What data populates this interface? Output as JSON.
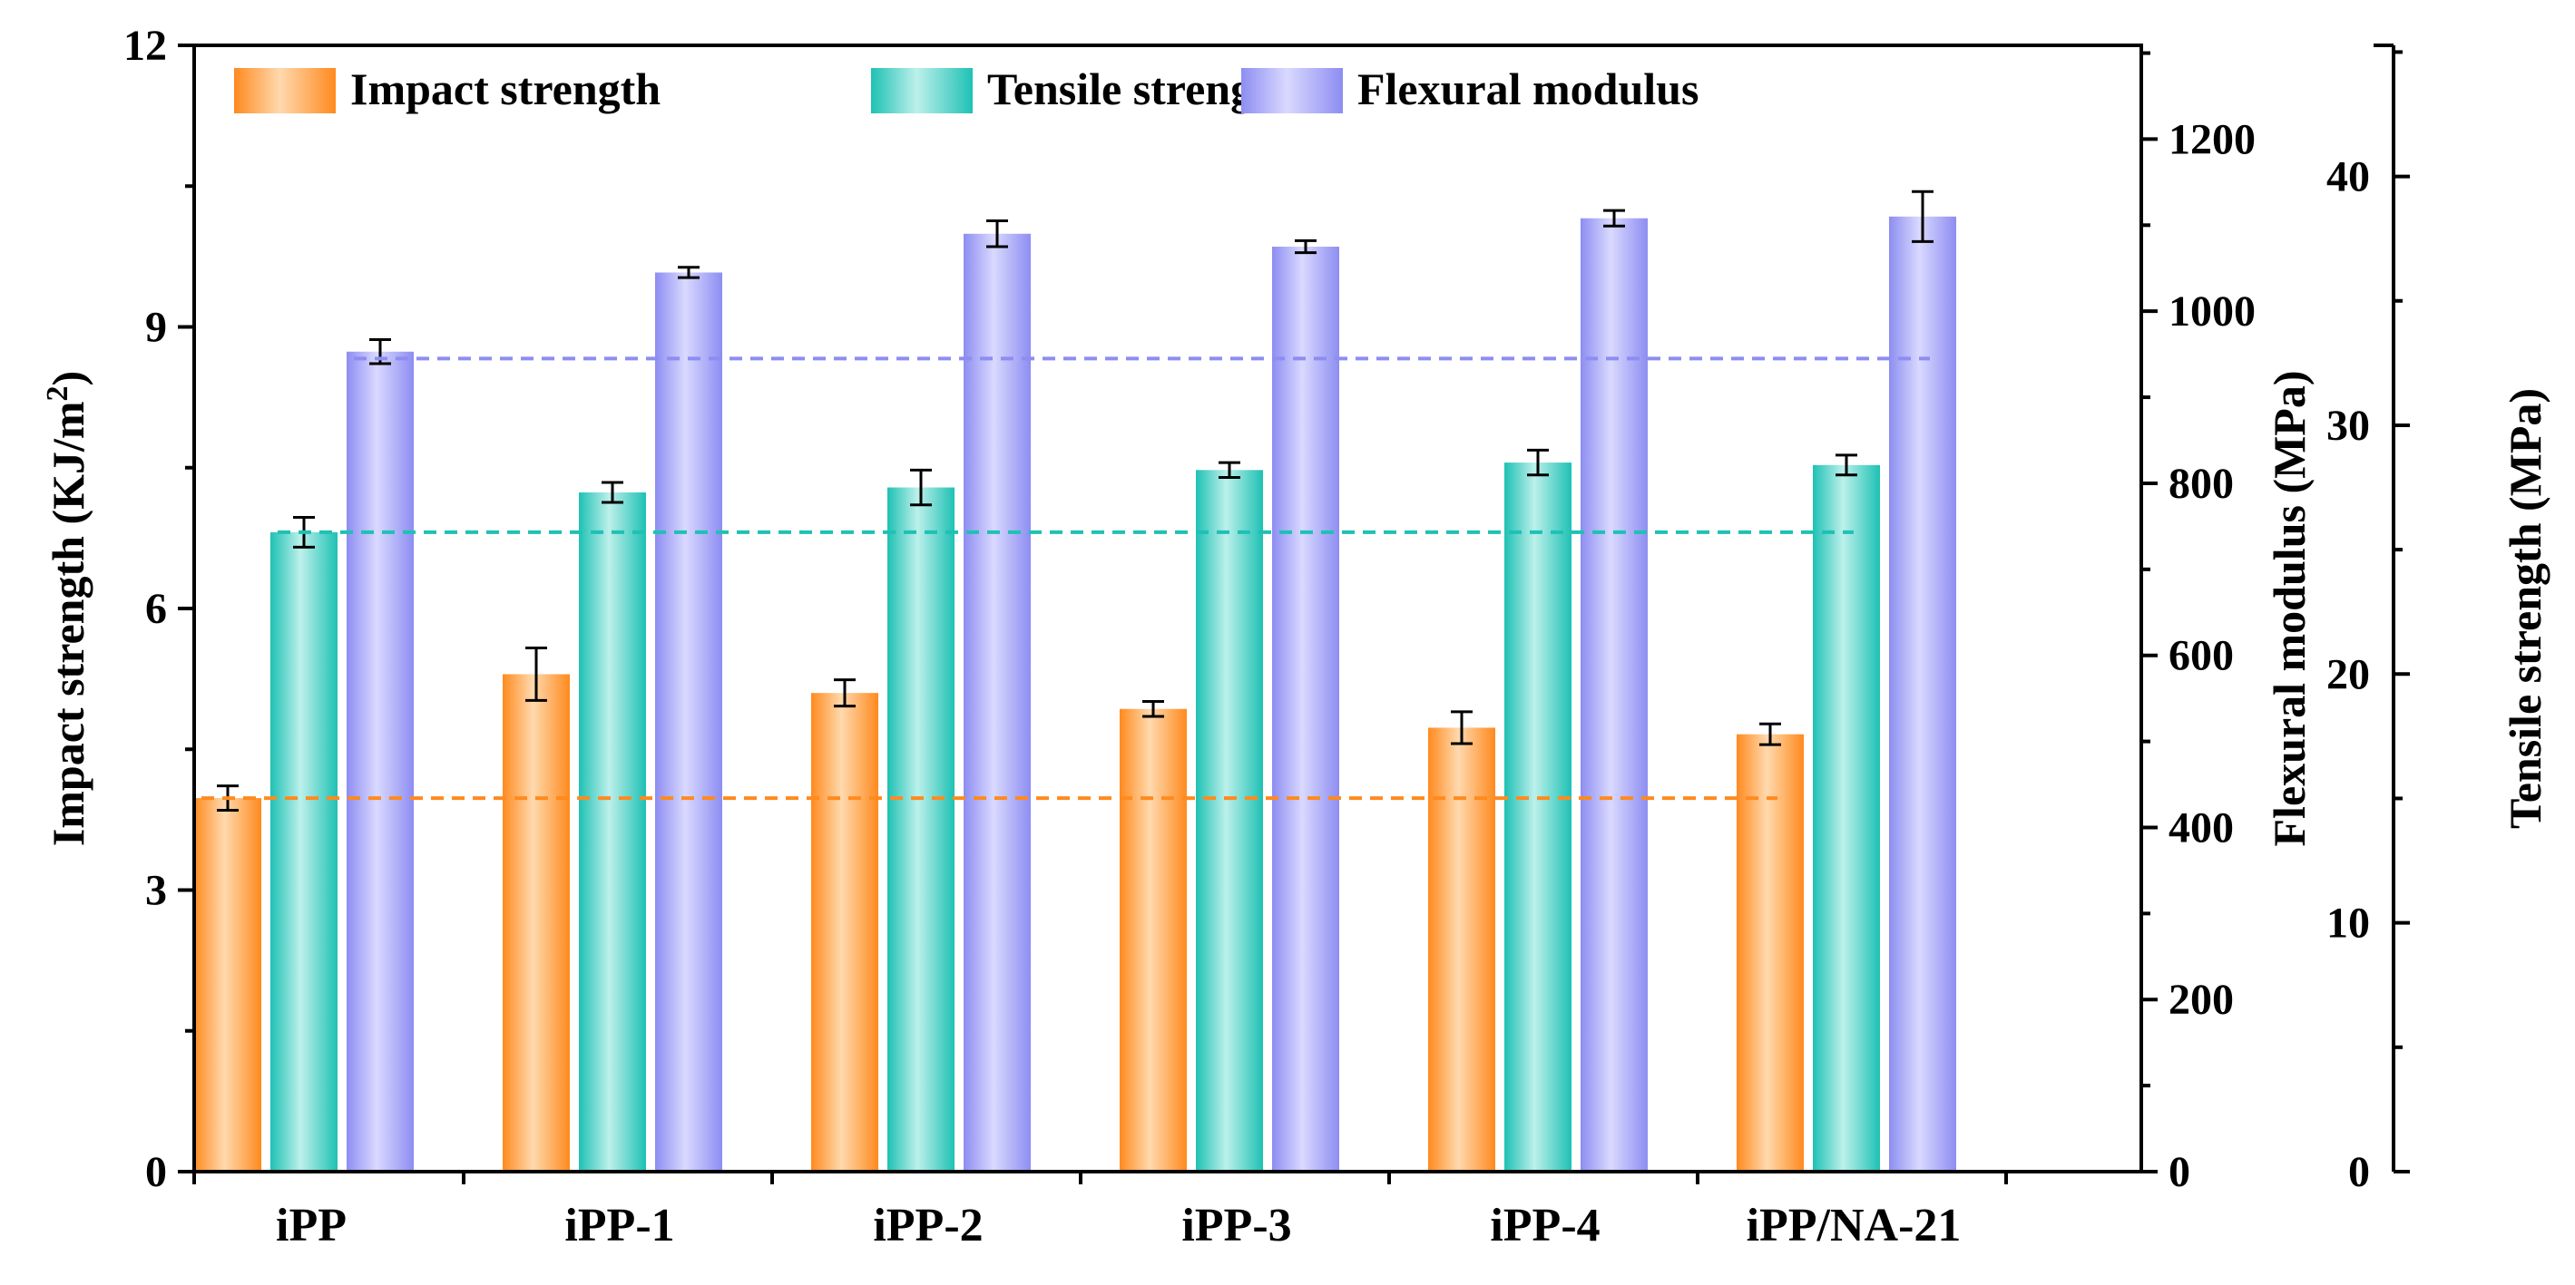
{
  "chart_data": {
    "type": "bar",
    "categories": [
      "iPP",
      "iPP-1",
      "iPP-2",
      "iPP-3",
      "iPP-4",
      "iPP/NA-21"
    ],
    "series": [
      {
        "name": "Impact strength",
        "axis": "left",
        "color": "#FF8A1E",
        "color_light": "#FFD9AE",
        "values": [
          3.98,
          5.3,
          5.1,
          4.93,
          4.73,
          4.66
        ],
        "errors": [
          0.13,
          0.28,
          0.14,
          0.08,
          0.17,
          0.11
        ],
        "baseline": 3.98
      },
      {
        "name": "Tensile strength",
        "axis": "right_outer",
        "color": "#1EC1B4",
        "color_light": "#BDF0EB",
        "values": [
          25.7,
          27.3,
          27.5,
          28.2,
          28.5,
          28.4
        ],
        "errors": [
          0.6,
          0.4,
          0.7,
          0.3,
          0.5,
          0.4
        ],
        "baseline": 25.7
      },
      {
        "name": "Flexural modulus",
        "axis": "right_inner",
        "color": "#8D8DF2",
        "color_light": "#D9D9FF",
        "values": [
          953,
          1045,
          1090,
          1075,
          1108,
          1110
        ],
        "errors": [
          14,
          6,
          15,
          7,
          9,
          29
        ],
        "baseline": 945
      }
    ],
    "axes": {
      "left": {
        "label": "Impact strength (KJ/m",
        "label_sup": "2",
        "label_close": ")",
        "ylim": [
          0,
          12
        ],
        "ticks": [
          "0",
          "3",
          "6",
          "9",
          "12"
        ]
      },
      "right_inner": {
        "label": "Flexural modulus (MPa)",
        "ylim": [
          0,
          1309
        ],
        "ticks": [
          "0",
          "200",
          "400",
          "600",
          "800",
          "1000",
          "1200"
        ]
      },
      "right_outer": {
        "label": "Tensile strength (MPa)",
        "ylim": [
          0,
          45.27
        ],
        "ticks": [
          "0",
          "10",
          "20",
          "30",
          "40"
        ]
      }
    },
    "legend_position": "top",
    "grid": false
  }
}
